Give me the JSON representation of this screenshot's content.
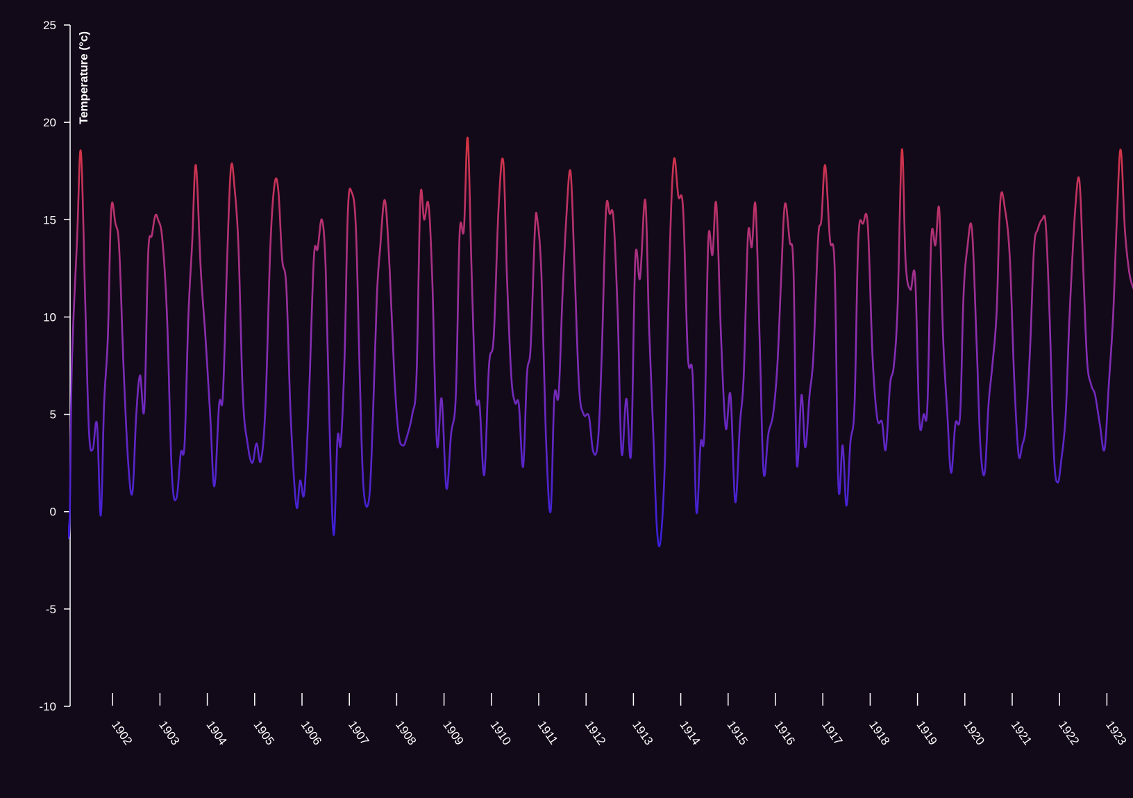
{
  "colors": {
    "background": "#130a19",
    "axis": "#ffffff",
    "line_low": "#3a1fd8",
    "line_mid": "#8a2fb0",
    "line_high": "#d8343e"
  },
  "chart_data": {
    "type": "line",
    "title": "",
    "xlabel": "",
    "ylabel": "Temperature (°c)",
    "ylim": [
      -10,
      25
    ],
    "yticks": [
      "25",
      "20",
      "15",
      "10",
      "5",
      "0",
      "-5",
      "-10"
    ],
    "xticks": [
      "1902",
      "1903",
      "1904",
      "1905",
      "1906",
      "1907",
      "1908",
      "1909",
      "1910",
      "1911",
      "1912",
      "1913",
      "1914",
      "1915",
      "1916",
      "1917",
      "1918",
      "1919",
      "1920",
      "1921",
      "1922",
      "1923"
    ],
    "grid": false,
    "legend": "none",
    "x_unit": "date (year, fractional)",
    "series": [
      {
        "x": [
          1901.04,
          1901.09,
          1901.14,
          1901.25,
          1901.33,
          1901.42,
          1901.5,
          1901.58,
          1901.67,
          1901.75,
          1901.82,
          1901.9,
          1901.97,
          1902.06,
          1902.14,
          1902.23,
          1902.33,
          1902.42,
          1902.5,
          1902.58,
          1902.67,
          1902.75,
          1902.83,
          1902.9,
          1902.96,
          1903.05,
          1903.15,
          1903.25,
          1903.35,
          1903.44,
          1903.52,
          1903.6,
          1903.68,
          1903.76,
          1903.86,
          1903.96,
          1904.06,
          1904.15,
          1904.25,
          1904.33,
          1904.42,
          1904.5,
          1904.58,
          1904.66,
          1904.75,
          1904.85,
          1904.95,
          1905.04,
          1905.13,
          1905.23,
          1905.33,
          1905.42,
          1905.5,
          1905.58,
          1905.67,
          1905.76,
          1905.88,
          1905.96,
          1906.05,
          1906.15,
          1906.25,
          1906.33,
          1906.42,
          1906.5,
          1906.58,
          1906.67,
          1906.75,
          1906.82,
          1906.9,
          1906.97,
          1907.05,
          1907.14,
          1907.22,
          1907.3,
          1907.42,
          1907.5,
          1907.58,
          1907.65,
          1907.75,
          1907.85,
          1907.95,
          1908.04,
          1908.13,
          1908.21,
          1908.33,
          1908.42,
          1908.5,
          1908.58,
          1908.67,
          1908.75,
          1908.85,
          1908.95,
          1909.05,
          1909.15,
          1909.25,
          1909.33,
          1909.42,
          1909.5,
          1909.58,
          1909.67,
          1909.75,
          1909.85,
          1909.95,
          1910.05,
          1910.15,
          1910.25,
          1910.33,
          1910.42,
          1910.5,
          1910.58,
          1910.67,
          1910.75,
          1910.83,
          1910.92,
          1910.97,
          1911.06,
          1911.15,
          1911.25,
          1911.33,
          1911.42,
          1911.5,
          1911.58,
          1911.67,
          1911.75,
          1911.85,
          1911.95,
          1912.06,
          1912.15,
          1912.25,
          1912.33,
          1912.42,
          1912.5,
          1912.58,
          1912.67,
          1912.75,
          1912.85,
          1912.95,
          1913.04,
          1913.14,
          1913.25,
          1913.33,
          1913.42,
          1913.5,
          1913.58,
          1913.67,
          1913.75,
          1913.85,
          1913.95,
          1914.05,
          1914.15,
          1914.25,
          1914.33,
          1914.42,
          1914.5,
          1914.58,
          1914.67,
          1914.75,
          1914.85,
          1914.95,
          1915.05,
          1915.15,
          1915.25,
          1915.33,
          1915.42,
          1915.5,
          1915.58,
          1915.67,
          1915.75,
          1915.85,
          1915.95,
          1916.04,
          1916.12,
          1916.2,
          1916.3,
          1916.38,
          1916.45,
          1916.55,
          1916.63,
          1916.72,
          1916.8,
          1916.9,
          1916.97,
          1917.05,
          1917.15,
          1917.25,
          1917.33,
          1917.42,
          1917.5,
          1917.58,
          1917.67,
          1917.75,
          1917.85,
          1917.95,
          1918.05,
          1918.15,
          1918.25,
          1918.33,
          1918.42,
          1918.5,
          1918.58,
          1918.67,
          1918.75,
          1918.85,
          1918.95,
          1919.04,
          1919.13,
          1919.21,
          1919.29,
          1919.38,
          1919.46,
          1919.54,
          1919.63,
          1919.71,
          1919.8,
          1919.9,
          1919.97,
          1920.05,
          1920.15,
          1920.25,
          1920.33,
          1920.42,
          1920.5,
          1920.58,
          1920.67,
          1920.75,
          1920.85,
          1920.95,
          1921.04,
          1921.13,
          1921.21,
          1921.29,
          1921.38,
          1921.46,
          1921.54,
          1921.63,
          1921.71,
          1921.79,
          1921.88,
          1921.96,
          1922.04,
          1922.13,
          1922.21,
          1922.33,
          1922.42,
          1922.5,
          1922.58,
          1922.67,
          1922.75,
          1922.85,
          1922.95,
          1923.04,
          1923.13,
          1923.21,
          1923.29,
          1923.38,
          1923.46,
          1923.54,
          1923.63
        ],
        "values": [
          -0.4,
          -0.8,
          7.5,
          14.0,
          18.5,
          11.0,
          4.2,
          3.2,
          4.5,
          -0.2,
          5.5,
          9.0,
          15.5,
          14.8,
          13.5,
          7.5,
          2.5,
          1.0,
          5.0,
          7.0,
          5.3,
          13.2,
          14.2,
          15.2,
          15.0,
          14.0,
          10.0,
          2.0,
          0.7,
          3.0,
          3.5,
          10.0,
          13.8,
          17.8,
          12.5,
          9.0,
          5.0,
          1.3,
          5.5,
          6.0,
          13.0,
          17.7,
          16.5,
          13.5,
          6.0,
          3.5,
          2.5,
          3.5,
          2.6,
          5.5,
          13.5,
          16.8,
          16.5,
          13.0,
          11.5,
          5.0,
          0.3,
          1.6,
          1.0,
          6.0,
          13.0,
          13.5,
          15.0,
          12.5,
          4.5,
          -1.2,
          3.8,
          3.5,
          8.0,
          15.5,
          16.4,
          14.5,
          7.0,
          1.2,
          0.7,
          5.0,
          11.0,
          13.5,
          16.0,
          12.5,
          7.0,
          4.0,
          3.4,
          3.8,
          5.0,
          7.0,
          16.1,
          15.0,
          15.8,
          12.0,
          3.5,
          5.8,
          1.2,
          4.0,
          6.0,
          14.3,
          14.5,
          19.2,
          12.5,
          6.0,
          5.5,
          1.9,
          7.5,
          9.0,
          15.5,
          18.0,
          12.0,
          7.0,
          5.6,
          5.5,
          2.3,
          7.0,
          8.5,
          14.5,
          15.0,
          12.0,
          4.0,
          0.0,
          5.9,
          6.0,
          11.0,
          15.0,
          17.5,
          13.0,
          6.5,
          5.0,
          4.9,
          3.1,
          3.6,
          8.0,
          15.4,
          15.3,
          15.0,
          10.0,
          3.0,
          5.8,
          3.0,
          13.0,
          12.0,
          16.0,
          9.5,
          4.0,
          -1.0,
          -1.3,
          3.0,
          12.0,
          18.0,
          16.2,
          15.5,
          8.0,
          7.0,
          0.0,
          3.5,
          4.2,
          13.9,
          13.2,
          15.8,
          9.0,
          4.3,
          6.0,
          0.5,
          4.5,
          7.0,
          14.2,
          13.6,
          15.7,
          8.5,
          2.0,
          4.0,
          5.0,
          7.5,
          12.0,
          15.8,
          13.9,
          12.5,
          2.5,
          6.0,
          3.3,
          6.0,
          8.0,
          14.0,
          15.0,
          17.8,
          14.0,
          12.5,
          1.3,
          3.4,
          0.3,
          3.5,
          5.5,
          14.0,
          14.8,
          14.7,
          8.0,
          4.8,
          4.6,
          3.2,
          6.5,
          7.5,
          10.6,
          18.6,
          12.8,
          11.4,
          12.0,
          4.7,
          5.0,
          5.5,
          14.0,
          13.7,
          15.5,
          9.0,
          5.0,
          2.0,
          4.5,
          5.0,
          11.0,
          13.5,
          14.5,
          8.5,
          3.3,
          2.0,
          5.5,
          7.5,
          10.2,
          16.0,
          15.5,
          13.0,
          7.0,
          3.0,
          3.4,
          4.5,
          8.5,
          13.5,
          14.5,
          15.0,
          14.7,
          10.0,
          3.0,
          1.5,
          2.7,
          5.0,
          10.0,
          15.5,
          17.0,
          12.5,
          7.8,
          6.5,
          6.0,
          4.5,
          3.2,
          6.5,
          10.0,
          15.0,
          18.6,
          14.5,
          12.5,
          11.6,
          11.2
        ]
      }
    ]
  }
}
